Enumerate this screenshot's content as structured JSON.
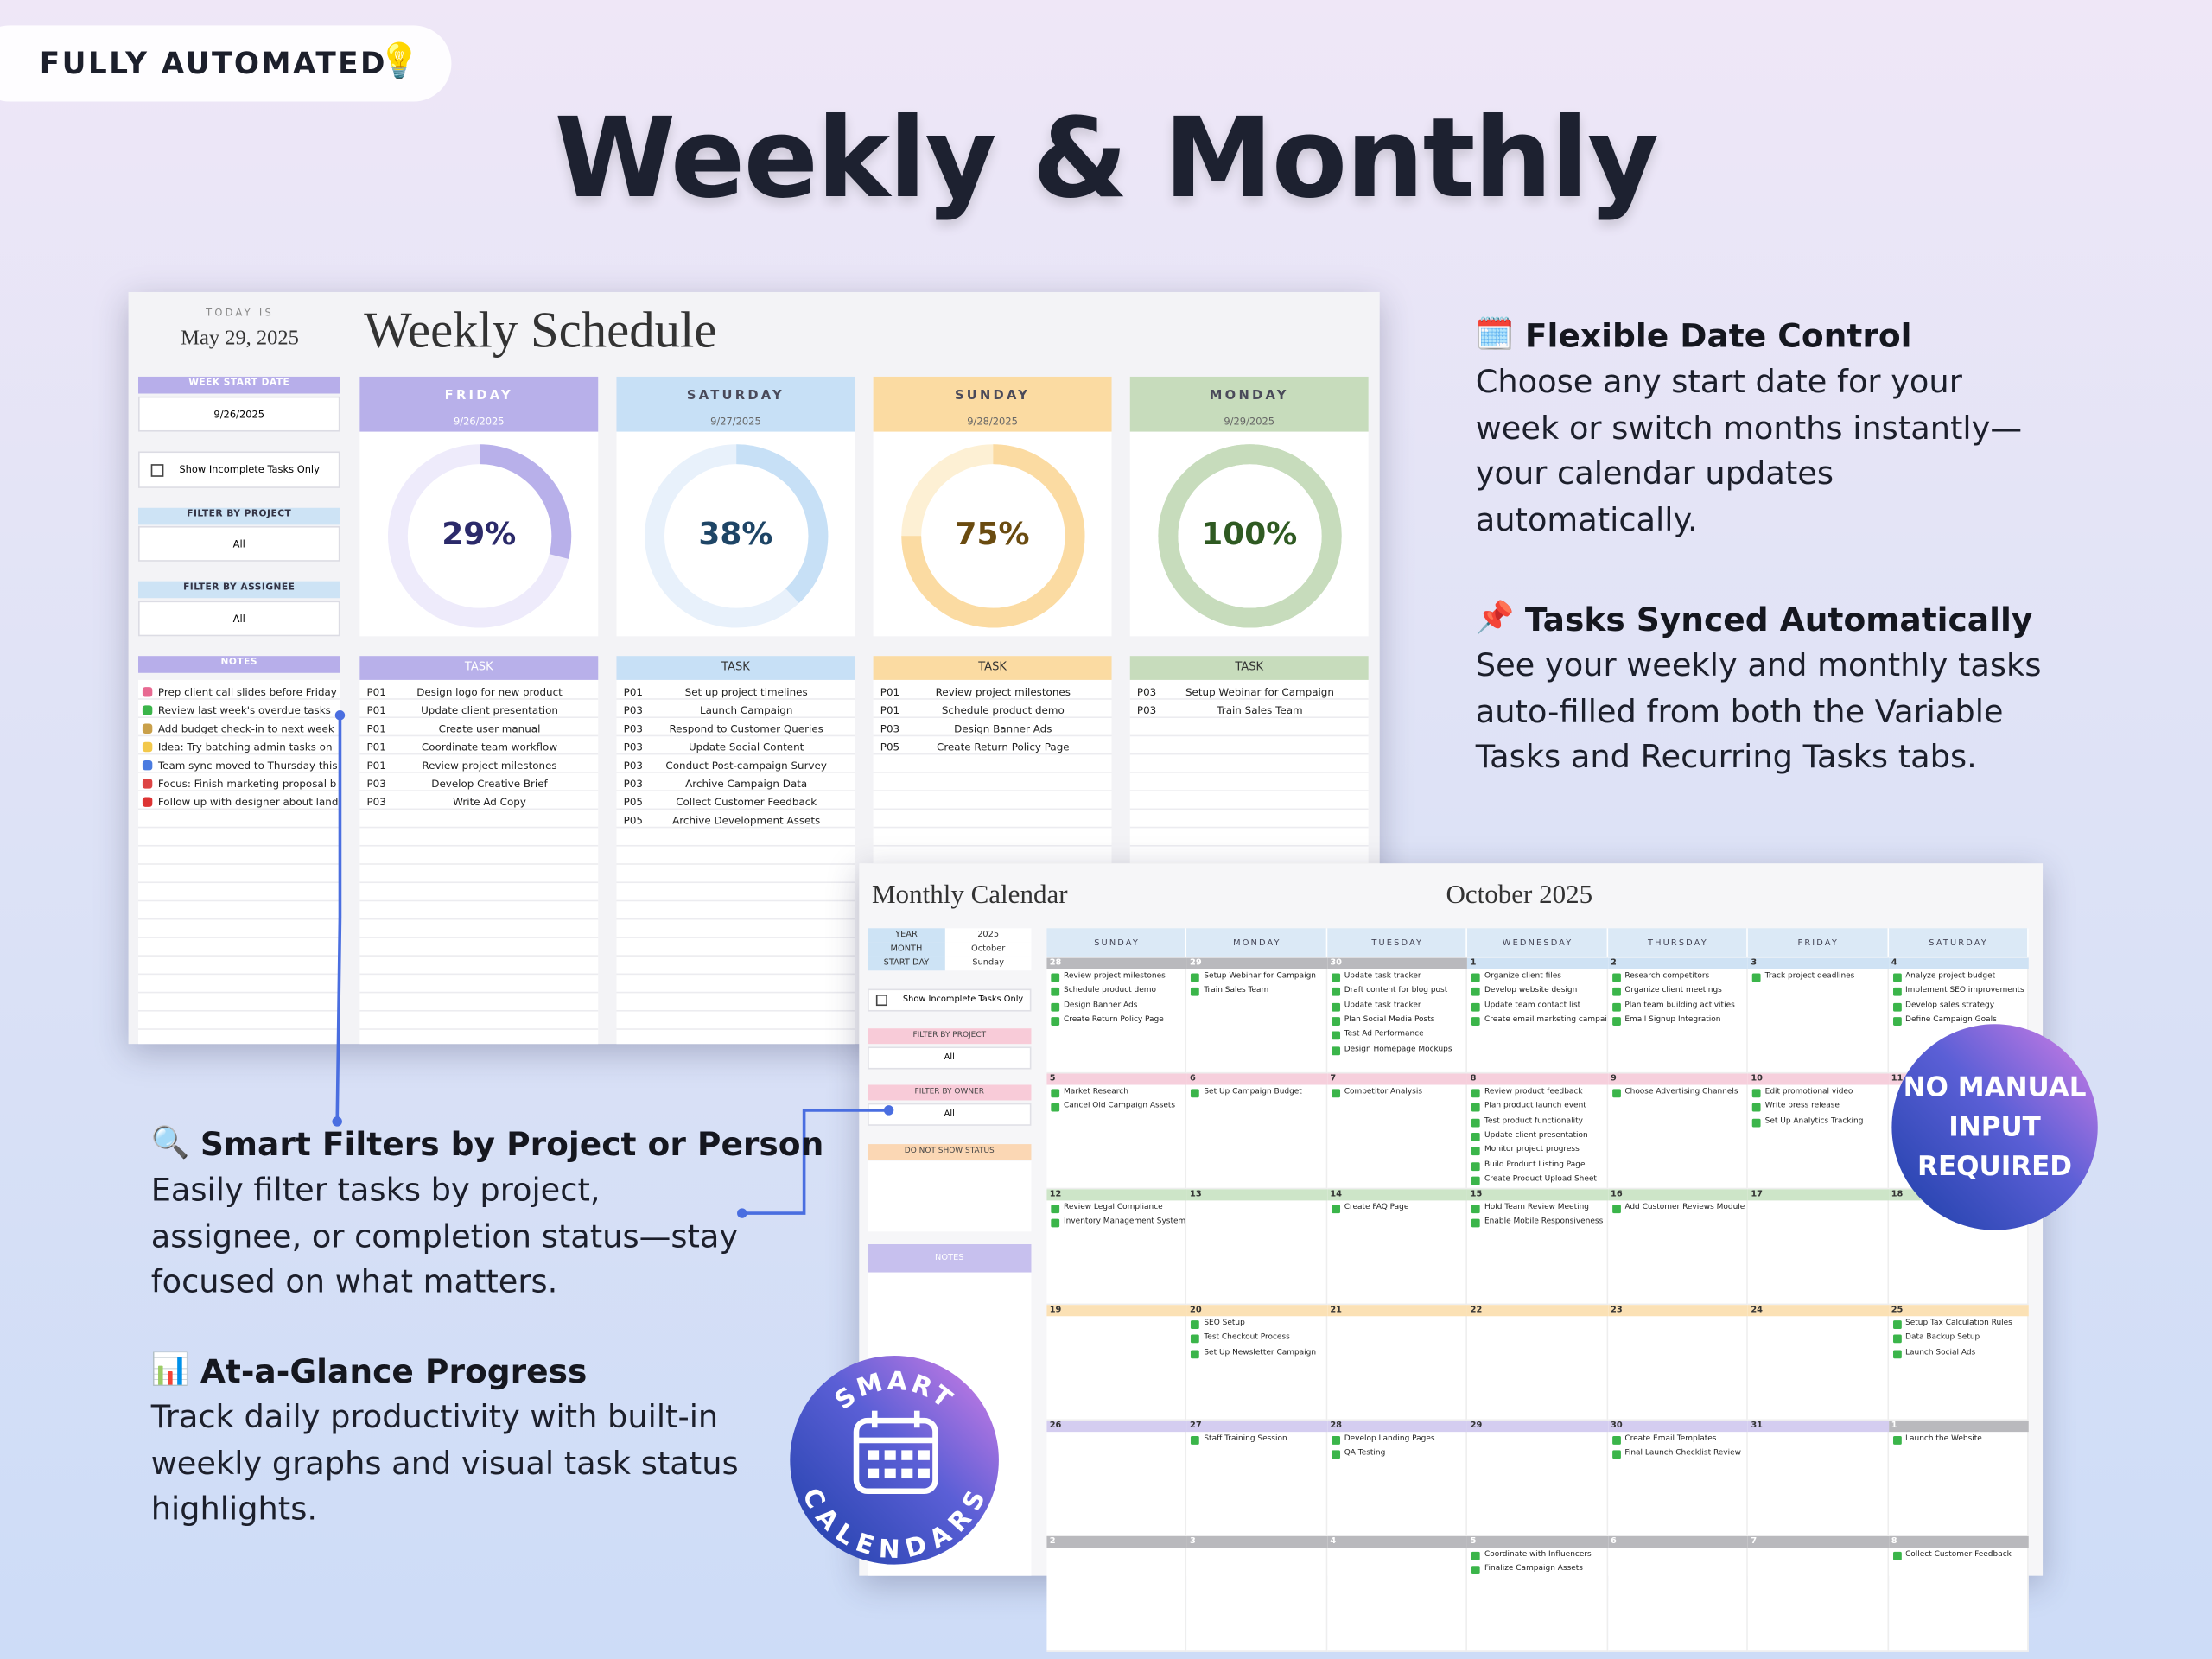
{
  "badge": {
    "text": "FULLY AUTOMATED",
    "icon": "💡"
  },
  "title": "Weekly & Monthly",
  "features": [
    {
      "icon": "🗓️",
      "title": "Flexible Date Control",
      "lines": [
        "Choose any start date for your",
        "week or switch months instantly—",
        "your calendar updates",
        "automatically."
      ]
    },
    {
      "icon": "📌",
      "title": "Tasks Synced Automatically",
      "lines": [
        "See your weekly and monthly tasks",
        "auto-filled from both the Variable",
        "Tasks and Recurring Tasks tabs."
      ]
    },
    {
      "icon": "🔍",
      "title": "Smart Filters by Project or Person",
      "lines": [
        "Easily filter tasks by project,",
        "assignee, or completion status—stay",
        "focused on what matters."
      ]
    },
    {
      "icon": "📊",
      "title": "At-a-Glance Progress",
      "lines": [
        "Track daily productivity with built-in",
        "weekly graphs and visual task status",
        "highlights."
      ]
    }
  ],
  "weekly": {
    "today_label": "TODAY IS",
    "today": "May 29, 2025",
    "title": "Weekly Schedule",
    "week_start_label": "WEEK START DATE",
    "week_start": "9/26/2025",
    "incomplete_label": "Show Incomplete Tasks Only",
    "filter_project_label": "FILTER BY PROJECT",
    "filter_project": "All",
    "filter_assignee_label": "FILTER BY ASSIGNEE",
    "filter_assignee": "All",
    "notes_label": "NOTES",
    "notes": [
      "Prep client call slides before Friday",
      "Review last week's overdue tasks",
      "Add budget check-in to next week",
      "Idea: Try batching admin tasks on",
      "Team sync moved to Thursday this",
      "Focus: Finish marketing proposal b",
      "Follow up with designer about land"
    ],
    "task_label": "TASK",
    "days": [
      {
        "name": "FRIDAY",
        "date": "9/26/2025",
        "percent": 29,
        "percent_label": "29%",
        "tasks": [
          [
            "P01",
            "Design logo for new product"
          ],
          [
            "P01",
            "Update client presentation"
          ],
          [
            "P01",
            "Create user manual"
          ],
          [
            "P01",
            "Coordinate team workflow"
          ],
          [
            "P01",
            "Review project milestones"
          ],
          [
            "P03",
            "Develop Creative Brief"
          ],
          [
            "P03",
            "Write Ad Copy"
          ]
        ]
      },
      {
        "name": "SATURDAY",
        "date": "9/27/2025",
        "percent": 38,
        "percent_label": "38%",
        "tasks": [
          [
            "P01",
            "Set up project timelines"
          ],
          [
            "P03",
            "Launch Campaign"
          ],
          [
            "P03",
            "Respond to Customer Queries"
          ],
          [
            "P03",
            "Update Social Content"
          ],
          [
            "P03",
            "Conduct Post-campaign Survey"
          ],
          [
            "P03",
            "Archive Campaign Data"
          ],
          [
            "P05",
            "Collect Customer Feedback"
          ],
          [
            "P05",
            "Archive Development Assets"
          ]
        ]
      },
      {
        "name": "SUNDAY",
        "date": "9/28/2025",
        "percent": 75,
        "percent_label": "75%",
        "tasks": [
          [
            "P01",
            "Review project milestones"
          ],
          [
            "P01",
            "Schedule product demo"
          ],
          [
            "P03",
            "Design Banner Ads"
          ],
          [
            "P05",
            "Create Return Policy Page"
          ]
        ]
      },
      {
        "name": "MONDAY",
        "date": "9/29/2025",
        "percent": 100,
        "percent_label": "100%",
        "tasks": [
          [
            "P03",
            "Setup Webinar for Campaign"
          ],
          [
            "P03",
            "Train Sales Team"
          ]
        ]
      }
    ]
  },
  "monthly": {
    "title": "Monthly Calendar",
    "month_title": "October 2025",
    "settings": [
      [
        "YEAR",
        "2025"
      ],
      [
        "MONTH",
        "October"
      ],
      [
        "START DAY",
        "Sunday"
      ]
    ],
    "incomplete_label": "Show Incomplete Tasks Only",
    "filter_project_label": "FILTER BY PROJECT",
    "filter_project": "All",
    "filter_owner_label": "FILTER BY OWNER",
    "filter_owner": "All",
    "status_label": "DO NOT SHOW STATUS",
    "notes_label": "NOTES",
    "weekdays": [
      "SUNDAY",
      "MONDAY",
      "TUESDAY",
      "WEDNESDAY",
      "THURSDAY",
      "FRIDAY",
      "SATURDAY"
    ],
    "weeks": [
      {
        "dates": [
          28,
          29,
          30,
          1,
          2,
          3,
          4
        ],
        "tasks": [
          [
            "Review project milestones",
            "Schedule product demo",
            "Design Banner Ads",
            "Create Return Policy Page"
          ],
          [
            "Setup Webinar for Campaign",
            "Train Sales Team"
          ],
          [
            "Update task tracker",
            "Draft content for blog post",
            "Update task tracker",
            "Plan Social Media Posts",
            "Test Ad Performance",
            "Design Homepage Mockups"
          ],
          [
            "Organize client files",
            "Develop website design",
            "Update team contact list",
            "Create email marketing campaign"
          ],
          [
            "Research competitors",
            "Organize client meetings",
            "Plan team building activities",
            "Email Signup Integration"
          ],
          [
            "Track project deadlines"
          ],
          [
            "Analyze project budget",
            "Implement SEO improvements",
            "Develop sales strategy",
            "Define Campaign Goals"
          ]
        ]
      },
      {
        "dates": [
          5,
          6,
          7,
          8,
          9,
          10,
          11
        ],
        "tasks": [
          [
            "Market Research",
            "Cancel Old Campaign Assets"
          ],
          [
            "Set Up Campaign Budget"
          ],
          [
            "Competitor Analysis"
          ],
          [
            "Review product feedback",
            "Plan product launch event",
            "Test product functionality",
            "Update client presentation",
            "Monitor project progress",
            "Build Product Listing Page",
            "Create Product Upload Sheet"
          ],
          [
            "Choose Advertising Channels"
          ],
          [
            "Edit promotional video",
            "Write press release",
            "Set Up Analytics Tracking"
          ],
          []
        ]
      },
      {
        "dates": [
          12,
          13,
          14,
          15,
          16,
          17,
          18
        ],
        "tasks": [
          [
            "Review Legal Compliance",
            "Inventory Management System"
          ],
          [],
          [
            "Create FAQ Page"
          ],
          [
            "Hold Team Review Meeting",
            "Enable Mobile Responsiveness"
          ],
          [
            "Add Customer Reviews Module"
          ],
          [],
          []
        ]
      },
      {
        "dates": [
          19,
          20,
          21,
          22,
          23,
          24,
          25
        ],
        "tasks": [
          [],
          [
            "SEO Setup",
            "Test Checkout Process",
            "Set Up Newsletter Campaign"
          ],
          [],
          [],
          [],
          [],
          [
            "Setup Tax Calculation Rules",
            "Data Backup Setup",
            "Launch Social Ads"
          ]
        ]
      },
      {
        "dates": [
          26,
          27,
          28,
          29,
          30,
          31,
          1
        ],
        "tasks": [
          [],
          [
            "Staff Training Session"
          ],
          [
            "Develop Landing Pages",
            "QA Testing"
          ],
          [],
          [
            "Create Email Templates",
            "Final Launch Checklist Review"
          ],
          [],
          [
            "Launch the Website"
          ]
        ]
      },
      {
        "dates": [
          2,
          3,
          4,
          5,
          6,
          7,
          8
        ],
        "tasks": [
          [],
          [],
          [],
          [
            "Coordinate with Influencers",
            "Finalize Campaign Assets"
          ],
          [],
          [],
          [
            "Collect Customer Feedback"
          ]
        ]
      }
    ]
  },
  "sticker_manual": [
    "NO MANUAL",
    "INPUT",
    "REQUIRED"
  ],
  "sticker_smart": {
    "top": "SMART",
    "bottom": "CALENDARS"
  }
}
